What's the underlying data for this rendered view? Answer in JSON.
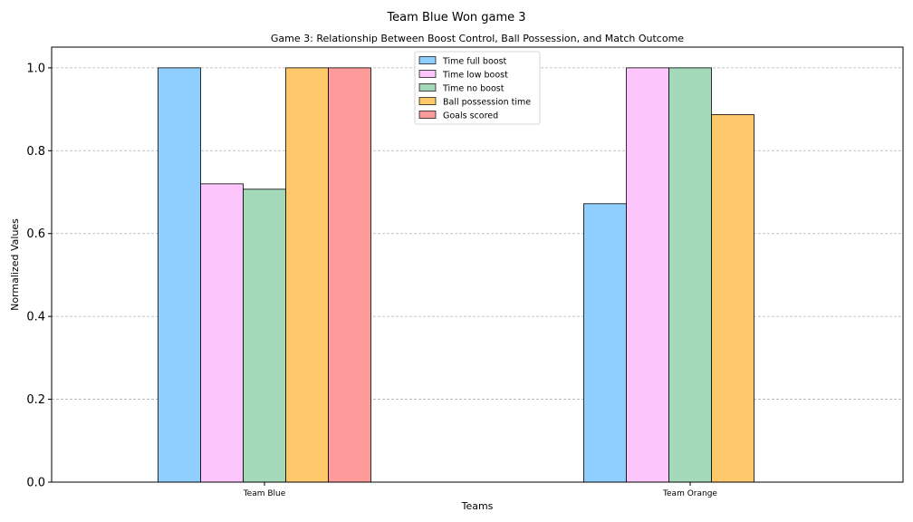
{
  "chart_data": {
    "type": "bar",
    "suptitle": "Team Blue Won game 3",
    "title": "Game 3: Relationship Between Boost Control, Ball Possession, and Match Outcome",
    "xlabel": "Teams",
    "ylabel": "Normalized Values",
    "categories": [
      "Team Blue",
      "Team Orange"
    ],
    "ylim": [
      0,
      1.05
    ],
    "yticks": [
      "0.0",
      "0.2",
      "0.4",
      "0.6",
      "0.8",
      "1.0"
    ],
    "grid": "y-dashed",
    "legend_position": "top-center",
    "series": [
      {
        "name": "Time full boost",
        "color": "#8fcfff",
        "values": [
          1.0,
          0.672
        ]
      },
      {
        "name": "Time low boost",
        "color": "#fcc6fc",
        "values": [
          0.72,
          1.0
        ]
      },
      {
        "name": "Time no boost",
        "color": "#a3d8b8",
        "values": [
          0.707,
          1.0
        ]
      },
      {
        "name": "Ball possession time",
        "color": "#ffc96b",
        "values": [
          1.0,
          0.887
        ]
      },
      {
        "name": "Goals scored",
        "color": "#ff9a9a",
        "values": [
          1.0,
          0.0
        ]
      }
    ]
  }
}
